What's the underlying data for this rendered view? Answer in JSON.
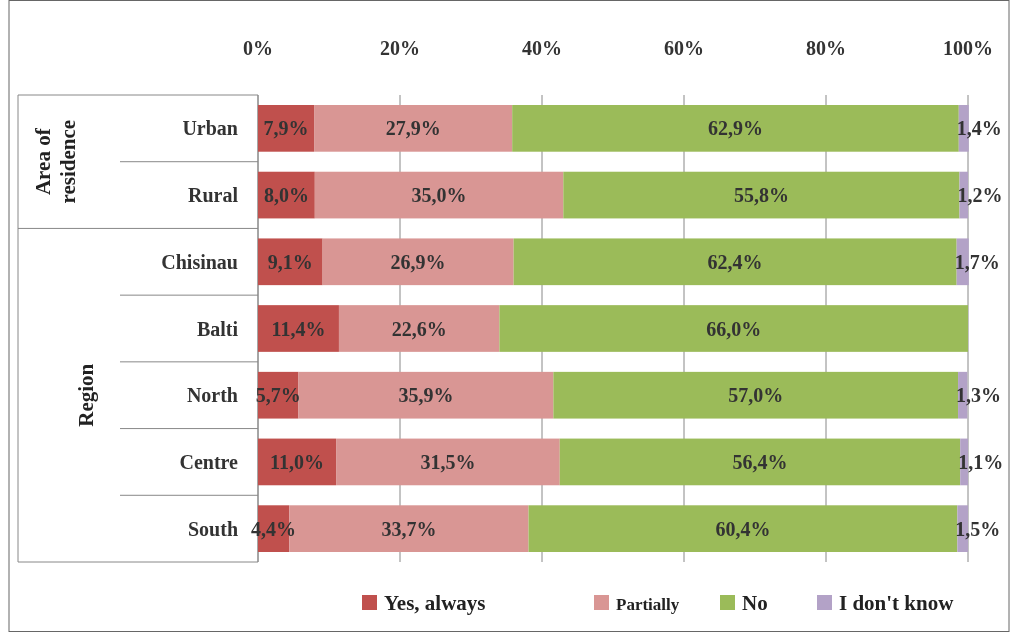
{
  "chart_data": {
    "type": "bar",
    "orientation": "horizontal",
    "stacked": true,
    "categories": [
      "Urban",
      "Rural",
      "Chisinau",
      "Balti",
      "North",
      "Centre",
      "South"
    ],
    "annotations": [
      "Area of residence",
      "Region"
    ],
    "xlim": [
      0,
      100
    ],
    "xticks": [
      {
        "value": 0,
        "label": "0%"
      },
      {
        "value": 20,
        "label": "20%"
      },
      {
        "value": 40,
        "label": "40%"
      },
      {
        "value": 60,
        "label": "60%"
      },
      {
        "value": 80,
        "label": "80%"
      },
      {
        "value": 100,
        "label": "100%"
      }
    ],
    "grid": "x",
    "legend": "bottom",
    "series": [
      {
        "name": "Yes, always",
        "color": "#c0504d",
        "values": [
          7.9,
          8.0,
          9.1,
          11.4,
          5.7,
          11.0,
          4.4
        ],
        "value_labels": [
          "7,9%",
          "8,0%",
          "9,1%",
          "11,4%",
          "5,7%",
          "11,0%",
          "4,4%"
        ]
      },
      {
        "name": "Partially",
        "color": "#d99694",
        "values": [
          27.9,
          35.0,
          26.9,
          22.6,
          35.9,
          31.5,
          33.7
        ],
        "value_labels": [
          "27,9%",
          "35,0%",
          "26,9%",
          "22,6%",
          "35,9%",
          "31,5%",
          "33,7%"
        ]
      },
      {
        "name": "No",
        "color": "#9bbb59",
        "values": [
          62.9,
          55.8,
          62.4,
          66.0,
          57.0,
          56.4,
          60.4
        ],
        "value_labels": [
          "62,9%",
          "55,8%",
          "62,4%",
          "66,0%",
          "57,0%",
          "56,4%",
          "60,4%"
        ]
      },
      {
        "name": "I don't know",
        "color": "#b3a2c7",
        "values": [
          1.4,
          1.2,
          1.7,
          null,
          1.3,
          1.1,
          1.5
        ],
        "value_labels": [
          "1,4%",
          "1,2%",
          "1,7%",
          null,
          "1,3%",
          "1,1%",
          "1,5%"
        ]
      }
    ]
  }
}
